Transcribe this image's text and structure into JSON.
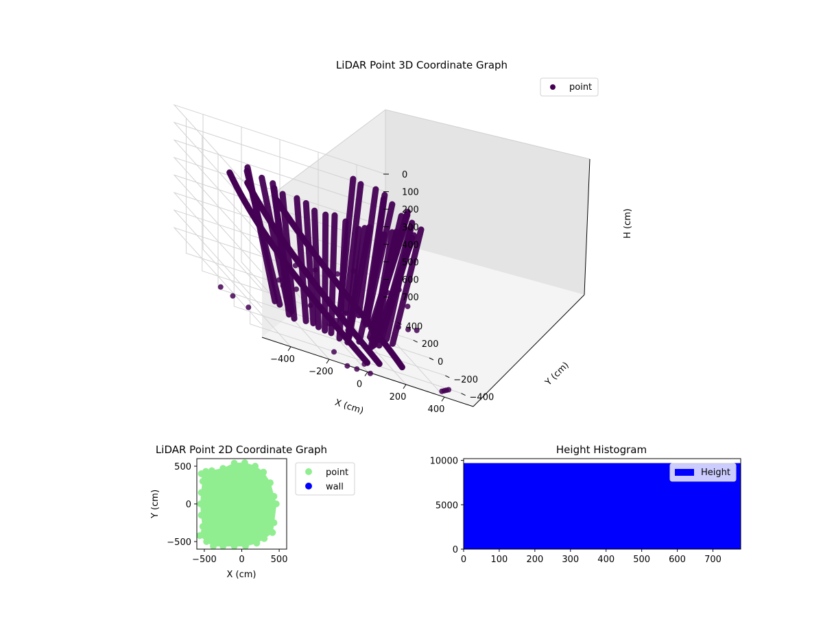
{
  "chart_data": [
    {
      "type": "scatter",
      "projection": "3d",
      "title": "LiDAR Point 3D Coordinate Graph",
      "xlabel": "X (cm)",
      "ylabel": "Y (cm)",
      "zlabel": "H (cm)",
      "xticks": [
        -400,
        -200,
        0,
        200,
        400
      ],
      "yticks": [
        -400,
        -200,
        0,
        200,
        400
      ],
      "zticks": [
        0,
        100,
        200,
        300,
        400,
        500,
        600,
        700
      ],
      "xlim": [
        -550,
        550
      ],
      "ylim": [
        -550,
        550
      ],
      "zlim": [
        0,
        770
      ],
      "z_inverted": true,
      "grid": true,
      "legend": {
        "placement": "top-right",
        "entries": [
          {
            "label": "point",
            "color": "#440154"
          }
        ]
      },
      "series": [
        {
          "name": "point",
          "color": "#440154",
          "points": [
            [
              -320,
              -260,
              540
            ],
            [
              -335,
              -245,
              520
            ],
            [
              -280,
              -330,
              510
            ],
            [
              -150,
              -440,
              495
            ],
            [
              -80,
              -470,
              505
            ],
            [
              20,
              -490,
              510
            ],
            [
              110,
              -470,
              520
            ],
            [
              210,
              -430,
              500
            ],
            [
              290,
              -360,
              520
            ],
            [
              360,
              -300,
              530
            ],
            [
              30,
              -520,
              590
            ],
            [
              -90,
              -520,
              580
            ],
            [
              -120,
              -460,
              300
            ],
            [
              -40,
              -470,
              250
            ],
            [
              60,
              -460,
              260
            ],
            [
              150,
              -440,
              320
            ],
            [
              230,
              -390,
              300
            ],
            [
              -210,
              -400,
              340
            ],
            [
              -280,
              -320,
              380
            ],
            [
              300,
              -330,
              400
            ],
            [
              -60,
              20,
              700
            ],
            [
              40,
              -60,
              710
            ],
            [
              -20,
              -120,
              720
            ],
            [
              100,
              0,
              700
            ],
            [
              420,
              -470,
              770
            ],
            [
              440,
              -450,
              770
            ],
            [
              460,
              -430,
              770
            ],
            [
              480,
              -410,
              770
            ],
            [
              -520,
              40,
              770
            ],
            [
              -490,
              -40,
              770
            ],
            [
              -450,
              -140,
              770
            ],
            [
              -110,
              -560,
              770
            ],
            [
              -60,
              -560,
              770
            ],
            [
              10,
              -560,
              770
            ],
            [
              -150,
              -490,
              740
            ],
            [
              0,
              -510,
              745
            ]
          ]
        }
      ]
    },
    {
      "type": "scatter",
      "title": "LiDAR Point 2D Coordinate Graph",
      "xlabel": "X (cm)",
      "ylabel": "Y (cm)",
      "xticks": [
        -500,
        0,
        500
      ],
      "yticks": [
        -500,
        0,
        500
      ],
      "xlim": [
        -600,
        600
      ],
      "ylim": [
        -600,
        600
      ],
      "legend": {
        "placement": "outside-right",
        "entries": [
          {
            "label": "point",
            "color": "#90ee90"
          },
          {
            "label": "wall",
            "color": "#0000ff"
          }
        ]
      },
      "series": [
        {
          "name": "point",
          "color": "#90ee90",
          "points": [
            [
              -540,
              400
            ],
            [
              -520,
              300
            ],
            [
              -540,
              150
            ],
            [
              -550,
              0
            ],
            [
              -540,
              -150
            ],
            [
              -520,
              -300
            ],
            [
              -560,
              -420
            ],
            [
              -470,
              -500
            ],
            [
              -380,
              -560
            ],
            [
              -250,
              -560
            ],
            [
              -100,
              -560
            ],
            [
              50,
              -560
            ],
            [
              200,
              -520
            ],
            [
              300,
              -460
            ],
            [
              410,
              -380
            ],
            [
              430,
              -250
            ],
            [
              460,
              0
            ],
            [
              430,
              100
            ],
            [
              380,
              280
            ],
            [
              290,
              420
            ],
            [
              180,
              500
            ],
            [
              40,
              545
            ],
            [
              -100,
              540
            ],
            [
              -250,
              470
            ],
            [
              -400,
              440
            ],
            [
              -480,
              430
            ],
            [
              -300,
              300
            ],
            [
              -200,
              100
            ],
            [
              -100,
              -100
            ],
            [
              0,
              0
            ],
            [
              100,
              200
            ],
            [
              200,
              -200
            ],
            [
              -350,
              -250
            ],
            [
              -150,
              350
            ],
            [
              250,
              100
            ],
            [
              300,
              -200
            ],
            [
              0,
              400
            ],
            [
              -50,
              -400
            ],
            [
              150,
              -350
            ],
            [
              -250,
              -450
            ],
            [
              -400,
              -330
            ],
            [
              -330,
              100
            ]
          ]
        },
        {
          "name": "wall",
          "color": "#0000ff",
          "points": []
        }
      ]
    },
    {
      "type": "bar",
      "title": "Height Histogram",
      "xticks": [
        0,
        100,
        200,
        300,
        400,
        500,
        600,
        700
      ],
      "yticks": [
        0,
        5000,
        10000
      ],
      "xlim": [
        0,
        778
      ],
      "ylim": [
        0,
        10200
      ],
      "legend": {
        "placement": "top-right",
        "entries": [
          {
            "label": "Height",
            "color": "#0000ff"
          }
        ]
      },
      "series": [
        {
          "name": "Height",
          "color": "#0000ff",
          "bins": [
            [
              0,
              778,
              9700
            ]
          ]
        }
      ]
    }
  ]
}
